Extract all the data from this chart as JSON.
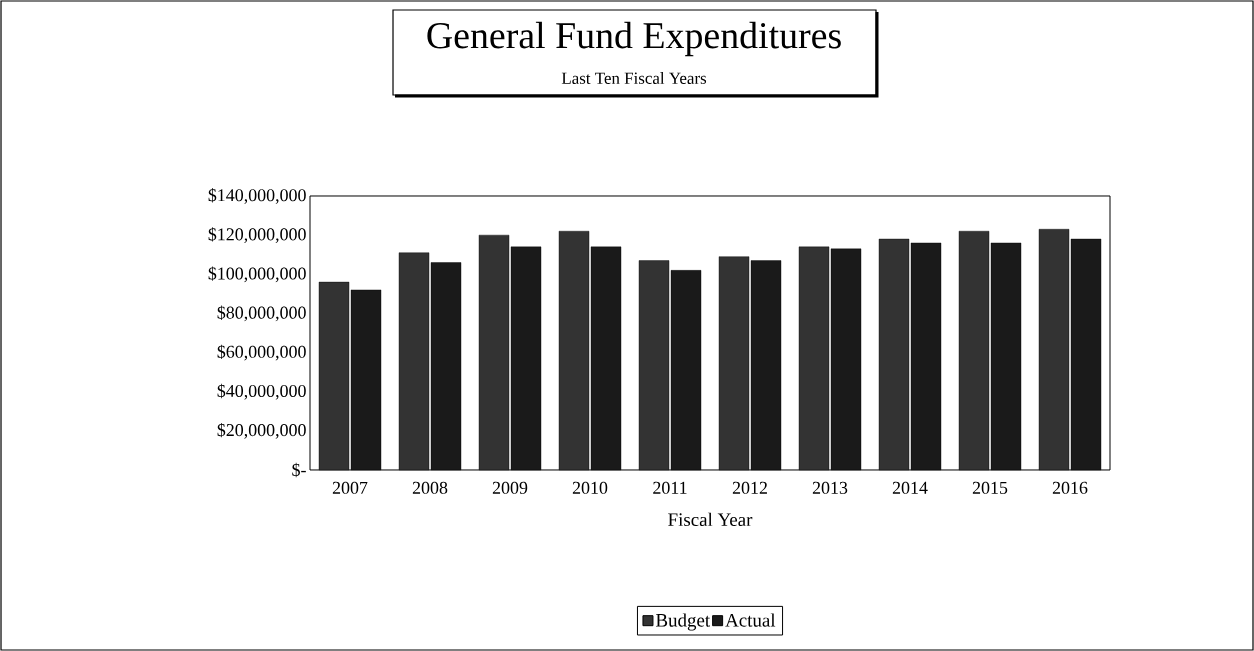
{
  "chart_data": {
    "type": "bar",
    "title": "General Fund Expenditures",
    "subtitle": "Last Ten Fiscal Years",
    "xlabel": "Fiscal Year",
    "categories": [
      "2007",
      "2008",
      "2009",
      "2010",
      "2011",
      "2012",
      "2013",
      "2014",
      "2015",
      "2016"
    ],
    "series": [
      {
        "name": "Budget",
        "color": "#333333",
        "values": [
          96000000,
          111000000,
          120000000,
          122000000,
          107000000,
          109000000,
          114000000,
          118000000,
          122000000,
          123000000
        ]
      },
      {
        "name": "Actual",
        "color": "#1a1a1a",
        "values": [
          92000000,
          106000000,
          114000000,
          114000000,
          102000000,
          107000000,
          113000000,
          116000000,
          116000000,
          118000000
        ]
      }
    ],
    "ylim": [
      0,
      140000000
    ],
    "yticks": [
      {
        "value": 0,
        "label": "$-"
      },
      {
        "value": 20000000,
        "label": "$20,000,000"
      },
      {
        "value": 40000000,
        "label": "$40,000,000"
      },
      {
        "value": 60000000,
        "label": "$60,000,000"
      },
      {
        "value": 80000000,
        "label": "$80,000,000"
      },
      {
        "value": 100000000,
        "label": "$100,000,000"
      },
      {
        "value": 120000000,
        "label": "$120,000,000"
      },
      {
        "value": 140000000,
        "label": "$140,000,000"
      }
    ],
    "grid": false,
    "legend": "bottom"
  }
}
